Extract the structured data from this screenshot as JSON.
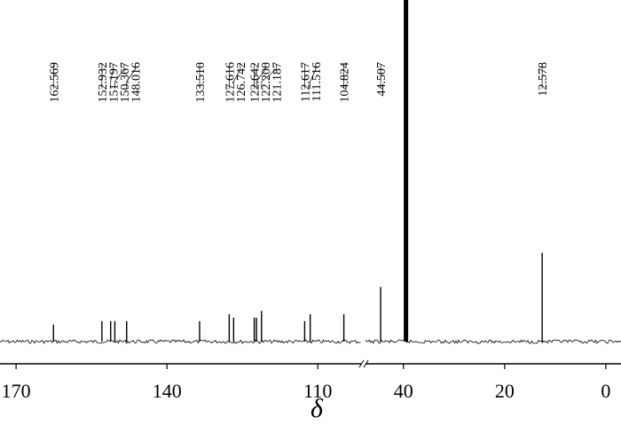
{
  "chart_data": {
    "type": "spectrum",
    "x_label": "δ",
    "segments": [
      {
        "xlim": [
          173.2,
          101.4
        ],
        "xticks": [
          170,
          140,
          110
        ]
      },
      {
        "xlim": [
          47.5,
          -3
        ],
        "xticks": [
          40,
          20,
          0
        ]
      }
    ],
    "ylim": [
      0,
      100
    ],
    "color": "#000000",
    "x": [
      162.569,
      152.932,
      151.197,
      150.367,
      148.016,
      133.51,
      127.616,
      126.742,
      122.642,
      122.2,
      121.187,
      112.617,
      111.516,
      104.824,
      44.507,
      39.5,
      12.578
    ],
    "values": [
      5,
      6,
      6,
      6,
      6,
      6,
      8,
      7,
      7,
      7,
      9,
      6,
      8,
      8,
      16,
      100,
      26
    ],
    "value_labels": [
      "162.569",
      "152.932",
      "151.197",
      "150.367",
      "148.016",
      "133.510",
      "127.616",
      "126.742",
      "122.642",
      "122.200",
      "121.187",
      "112.617",
      "111.516",
      "104.824",
      "44.507",
      null,
      "12.578"
    ]
  }
}
